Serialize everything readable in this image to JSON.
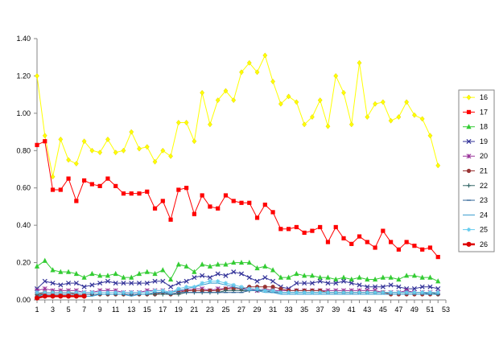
{
  "chart_data": {
    "type": "line",
    "title": "",
    "xlabel": "",
    "ylabel": "",
    "xlim": [
      1,
      53
    ],
    "ylim": [
      0,
      1.4
    ],
    "y_ticks": [
      "0.00",
      "0.20",
      "0.40",
      "0.60",
      "0.80",
      "1.00",
      "1.20",
      "1.40"
    ],
    "x_ticks": [
      "1",
      "3",
      "5",
      "7",
      "9",
      "11",
      "13",
      "15",
      "17",
      "19",
      "21",
      "23",
      "25",
      "27",
      "29",
      "31",
      "33",
      "35",
      "37",
      "39",
      "41",
      "43",
      "45",
      "47",
      "49",
      "51",
      "53"
    ],
    "grid": false,
    "legend_position": "right",
    "series": [
      {
        "name": "16",
        "color": "#ffff00",
        "marker": "diamond",
        "values": [
          1.2,
          0.88,
          0.66,
          0.86,
          0.75,
          0.73,
          0.85,
          0.8,
          0.79,
          0.86,
          0.79,
          0.8,
          0.9,
          0.81,
          0.82,
          0.74,
          0.8,
          0.77,
          0.95,
          0.95,
          0.85,
          1.11,
          0.94,
          1.07,
          1.12,
          1.07,
          1.22,
          1.27,
          1.22,
          1.31,
          1.17,
          1.05,
          1.09,
          1.06,
          0.94,
          0.98,
          1.07,
          0.93,
          1.2,
          1.11,
          0.94,
          1.27,
          0.98,
          1.05,
          1.06,
          0.96,
          0.98,
          1.06,
          0.99,
          0.97,
          0.88,
          0.72
        ]
      },
      {
        "name": "17",
        "color": "#ff0000",
        "marker": "square",
        "values": [
          0.83,
          0.85,
          0.59,
          0.59,
          0.65,
          0.53,
          0.64,
          0.62,
          0.61,
          0.65,
          0.61,
          0.57,
          0.57,
          0.57,
          0.58,
          0.49,
          0.53,
          0.43,
          0.59,
          0.6,
          0.46,
          0.56,
          0.5,
          0.49,
          0.56,
          0.53,
          0.52,
          0.52,
          0.44,
          0.51,
          0.47,
          0.38,
          0.38,
          0.39,
          0.36,
          0.37,
          0.39,
          0.31,
          0.39,
          0.33,
          0.3,
          0.34,
          0.31,
          0.28,
          0.37,
          0.31,
          0.27,
          0.31,
          0.29,
          0.27,
          0.28,
          0.23
        ]
      },
      {
        "name": "18",
        "color": "#33cc33",
        "marker": "triangle",
        "values": [
          0.18,
          0.21,
          0.16,
          0.15,
          0.15,
          0.14,
          0.12,
          0.14,
          0.13,
          0.13,
          0.14,
          0.12,
          0.12,
          0.14,
          0.15,
          0.14,
          0.16,
          0.11,
          0.19,
          0.18,
          0.15,
          0.19,
          0.18,
          0.19,
          0.19,
          0.2,
          0.2,
          0.2,
          0.17,
          0.18,
          0.16,
          0.12,
          0.12,
          0.14,
          0.13,
          0.13,
          0.12,
          0.12,
          0.11,
          0.12,
          0.11,
          0.12,
          0.11,
          0.11,
          0.12,
          0.12,
          0.11,
          0.13,
          0.13,
          0.12,
          0.12,
          0.1
        ]
      },
      {
        "name": "19",
        "color": "#333399",
        "marker": "x",
        "values": [
          0.06,
          0.1,
          0.09,
          0.08,
          0.09,
          0.09,
          0.07,
          0.08,
          0.09,
          0.1,
          0.09,
          0.09,
          0.09,
          0.09,
          0.09,
          0.1,
          0.1,
          0.07,
          0.09,
          0.1,
          0.12,
          0.13,
          0.12,
          0.14,
          0.13,
          0.15,
          0.14,
          0.12,
          0.1,
          0.12,
          0.1,
          0.07,
          0.06,
          0.09,
          0.09,
          0.09,
          0.1,
          0.09,
          0.09,
          0.1,
          0.09,
          0.08,
          0.07,
          0.07,
          0.07,
          0.08,
          0.07,
          0.06,
          0.06,
          0.07,
          0.07,
          0.06
        ]
      },
      {
        "name": "20",
        "color": "#993399",
        "marker": "star",
        "values": [
          0.05,
          0.06,
          0.05,
          0.05,
          0.05,
          0.05,
          0.04,
          0.04,
          0.05,
          0.05,
          0.05,
          0.04,
          0.04,
          0.04,
          0.05,
          0.05,
          0.05,
          0.04,
          0.05,
          0.05,
          0.06,
          0.06,
          0.05,
          0.06,
          0.06,
          0.07,
          0.06,
          0.06,
          0.05,
          0.06,
          0.05,
          0.05,
          0.05,
          0.05,
          0.05,
          0.05,
          0.05,
          0.05,
          0.05,
          0.05,
          0.05,
          0.05,
          0.05,
          0.05,
          0.04,
          0.04,
          0.04,
          0.05,
          0.04,
          0.04,
          0.04,
          0.04
        ]
      },
      {
        "name": "21",
        "color": "#993333",
        "marker": "circle",
        "values": [
          0.03,
          0.04,
          0.04,
          0.04,
          0.04,
          0.03,
          0.03,
          0.03,
          0.03,
          0.03,
          0.03,
          0.03,
          0.03,
          0.03,
          0.03,
          0.03,
          0.04,
          0.03,
          0.04,
          0.05,
          0.05,
          0.05,
          0.05,
          0.05,
          0.06,
          0.06,
          0.06,
          0.07,
          0.07,
          0.07,
          0.07,
          0.06,
          0.05,
          0.05,
          0.05,
          0.05,
          0.05,
          0.04,
          0.04,
          0.04,
          0.04,
          0.04,
          0.04,
          0.04,
          0.04,
          0.03,
          0.03,
          0.03,
          0.03,
          0.03,
          0.03,
          0.03
        ]
      },
      {
        "name": "22",
        "color": "#336666",
        "marker": "plus",
        "values": [
          0.03,
          0.03,
          0.03,
          0.03,
          0.03,
          0.03,
          0.03,
          0.03,
          0.03,
          0.03,
          0.03,
          0.03,
          0.03,
          0.03,
          0.03,
          0.03,
          0.03,
          0.03,
          0.03,
          0.04,
          0.04,
          0.04,
          0.04,
          0.04,
          0.05,
          0.05,
          0.05,
          0.05,
          0.05,
          0.05,
          0.05,
          0.04,
          0.04,
          0.04,
          0.04,
          0.04,
          0.04,
          0.04,
          0.04,
          0.04,
          0.04,
          0.04,
          0.04,
          0.04,
          0.04,
          0.04,
          0.04,
          0.04,
          0.04,
          0.04,
          0.04,
          0.03
        ]
      },
      {
        "name": "23",
        "color": "#336699",
        "marker": "dash",
        "values": [
          0.02,
          0.03,
          0.03,
          0.03,
          0.03,
          0.03,
          0.03,
          0.03,
          0.03,
          0.03,
          0.03,
          0.03,
          0.03,
          0.03,
          0.03,
          0.04,
          0.04,
          0.03,
          0.04,
          0.04,
          0.04,
          0.04,
          0.04,
          0.04,
          0.04,
          0.04,
          0.04,
          0.05,
          0.05,
          0.05,
          0.04,
          0.04,
          0.04,
          0.04,
          0.04,
          0.04,
          0.04,
          0.04,
          0.04,
          0.04,
          0.04,
          0.04,
          0.04,
          0.04,
          0.04,
          0.04,
          0.04,
          0.04,
          0.04,
          0.04,
          0.03,
          0.03
        ]
      },
      {
        "name": "24",
        "color": "#3399cc",
        "marker": "none",
        "values": [
          0.02,
          0.02,
          0.02,
          0.02,
          0.02,
          0.02,
          0.02,
          0.02,
          0.03,
          0.03,
          0.03,
          0.03,
          0.02,
          0.03,
          0.03,
          0.04,
          0.04,
          0.04,
          0.05,
          0.06,
          0.07,
          0.08,
          0.09,
          0.09,
          0.08,
          0.07,
          0.06,
          0.05,
          0.05,
          0.04,
          0.04,
          0.03,
          0.03,
          0.03,
          0.03,
          0.03,
          0.03,
          0.03,
          0.03,
          0.03,
          0.03,
          0.03,
          0.03,
          0.03,
          0.03,
          0.03,
          0.03,
          0.03,
          0.03,
          0.03,
          0.03,
          0.03
        ]
      },
      {
        "name": "25",
        "color": "#66ccee",
        "marker": "asterisk",
        "values": [
          0.04,
          0.04,
          0.04,
          0.04,
          0.04,
          0.04,
          0.04,
          0.04,
          0.04,
          0.04,
          0.04,
          0.04,
          0.04,
          0.04,
          0.04,
          0.05,
          0.05,
          0.04,
          0.06,
          0.07,
          0.07,
          0.09,
          0.1,
          0.1,
          0.09,
          0.08,
          0.07,
          0.06,
          0.06,
          0.05,
          0.05,
          0.04,
          0.04,
          0.04,
          0.04,
          0.04,
          0.04,
          0.04,
          0.04,
          0.04,
          0.04,
          0.04,
          0.04,
          0.04,
          0.04,
          0.04,
          0.04,
          0.04,
          0.04,
          0.04,
          0.04,
          0.04
        ]
      },
      {
        "name": "26",
        "color": "#dd0000",
        "marker": "bigcircle",
        "values": [
          0.01,
          0.02,
          0.02,
          0.02,
          0.02,
          0.02,
          0.02
        ]
      }
    ]
  }
}
